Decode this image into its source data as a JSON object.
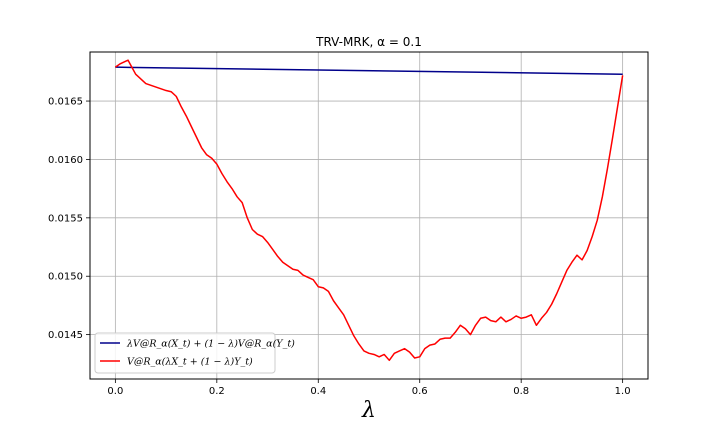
{
  "chart_data": {
    "type": "line",
    "title": "TRV-MRK, α = 0.1",
    "xlabel": "λ",
    "ylabel": "",
    "xlim": [
      -0.05,
      1.05
    ],
    "ylim": [
      0.01412,
      0.01692
    ],
    "grid": true,
    "legend_position": "lower left",
    "x_ticks": [
      {
        "value": 0.0,
        "label": "0.0"
      },
      {
        "value": 0.2,
        "label": "0.2"
      },
      {
        "value": 0.4,
        "label": "0.4"
      },
      {
        "value": 0.6,
        "label": "0.6"
      },
      {
        "value": 0.8,
        "label": "0.8"
      },
      {
        "value": 1.0,
        "label": "1.0"
      }
    ],
    "y_ticks": [
      {
        "value": 0.0145,
        "label": "0.0145"
      },
      {
        "value": 0.015,
        "label": "0.0150"
      },
      {
        "value": 0.0155,
        "label": "0.0155"
      },
      {
        "value": 0.016,
        "label": "0.0160"
      },
      {
        "value": 0.0165,
        "label": "0.0165"
      }
    ],
    "series": [
      {
        "name": "λV@R_α(X_t) + (1 − λ)V@R_α(Y_t)",
        "color": "#00008b",
        "x": [
          0.0,
          1.0
        ],
        "y": [
          0.01679,
          0.01673
        ]
      },
      {
        "name": "V@R_α(λX_t + (1 − λ)Y_t)",
        "color": "#ff0000",
        "x": [
          0.0,
          0.01,
          0.02,
          0.025,
          0.03,
          0.04,
          0.06,
          0.08,
          0.1,
          0.11,
          0.12,
          0.13,
          0.14,
          0.15,
          0.16,
          0.17,
          0.18,
          0.19,
          0.2,
          0.21,
          0.22,
          0.23,
          0.24,
          0.25,
          0.26,
          0.27,
          0.28,
          0.29,
          0.3,
          0.31,
          0.32,
          0.33,
          0.34,
          0.35,
          0.36,
          0.37,
          0.38,
          0.39,
          0.4,
          0.41,
          0.42,
          0.43,
          0.44,
          0.45,
          0.46,
          0.47,
          0.48,
          0.49,
          0.5,
          0.51,
          0.52,
          0.53,
          0.54,
          0.55,
          0.56,
          0.57,
          0.58,
          0.59,
          0.6,
          0.61,
          0.62,
          0.63,
          0.64,
          0.65,
          0.66,
          0.67,
          0.68,
          0.69,
          0.7,
          0.71,
          0.72,
          0.73,
          0.74,
          0.75,
          0.76,
          0.77,
          0.78,
          0.79,
          0.8,
          0.81,
          0.82,
          0.83,
          0.84,
          0.85,
          0.86,
          0.87,
          0.88,
          0.89,
          0.9,
          0.91,
          0.92,
          0.93,
          0.94,
          0.95,
          0.96,
          0.97,
          0.98,
          0.99,
          1.0
        ],
        "y": [
          0.01679,
          0.01682,
          0.01684,
          0.01685,
          0.01681,
          0.01673,
          0.01665,
          0.01662,
          0.01659,
          0.01658,
          0.01654,
          0.01645,
          0.01637,
          0.01628,
          0.01619,
          0.0161,
          0.01604,
          0.01601,
          0.01596,
          0.01588,
          0.01581,
          0.01575,
          0.01568,
          0.01563,
          0.0155,
          0.0154,
          0.01536,
          0.01534,
          0.01529,
          0.01523,
          0.01517,
          0.01512,
          0.01509,
          0.01506,
          0.01505,
          0.01501,
          0.01499,
          0.01497,
          0.01491,
          0.0149,
          0.01487,
          0.01479,
          0.01473,
          0.01467,
          0.01458,
          0.01449,
          0.01442,
          0.01436,
          0.01434,
          0.01433,
          0.01431,
          0.01433,
          0.01428,
          0.01434,
          0.01436,
          0.01438,
          0.01435,
          0.0143,
          0.01431,
          0.01438,
          0.01441,
          0.01442,
          0.01446,
          0.01447,
          0.01447,
          0.01452,
          0.01458,
          0.01455,
          0.0145,
          0.01458,
          0.01464,
          0.01465,
          0.01462,
          0.01461,
          0.01465,
          0.01461,
          0.01463,
          0.01466,
          0.01464,
          0.01465,
          0.01467,
          0.01458,
          0.01464,
          0.01469,
          0.01476,
          0.01485,
          0.01495,
          0.01505,
          0.01512,
          0.01518,
          0.01514,
          0.01522,
          0.01534,
          0.01548,
          0.01568,
          0.01592,
          0.01618,
          0.01645,
          0.01672
        ]
      }
    ]
  }
}
